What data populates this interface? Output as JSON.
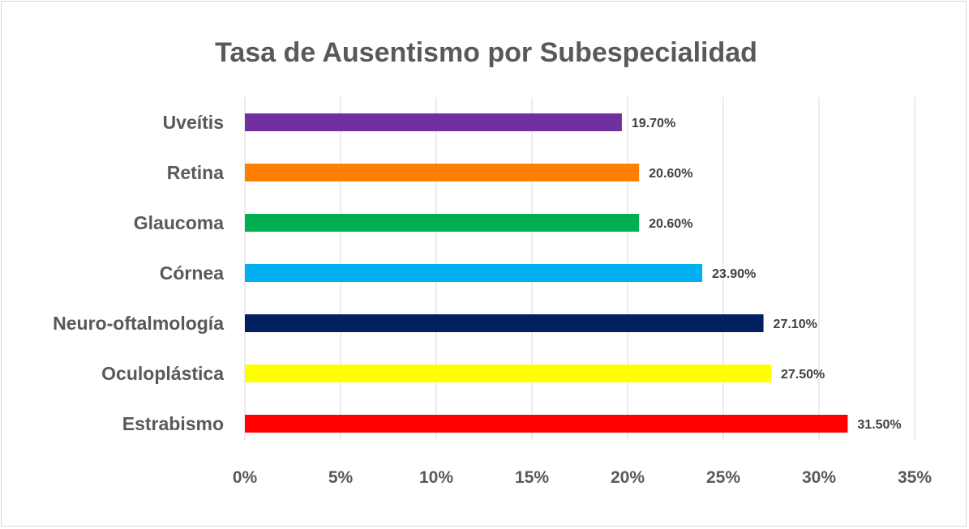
{
  "chart_data": {
    "type": "bar",
    "orientation": "horizontal",
    "title": "Tasa de Ausentismo por Subespecialidad",
    "xlabel": "",
    "ylabel": "",
    "xlim": [
      0,
      35
    ],
    "ticks": [
      {
        "value": 0,
        "label": "0%"
      },
      {
        "value": 5,
        "label": "5%"
      },
      {
        "value": 10,
        "label": "10%"
      },
      {
        "value": 15,
        "label": "15%"
      },
      {
        "value": 20,
        "label": "20%"
      },
      {
        "value": 25,
        "label": "25%"
      },
      {
        "value": 30,
        "label": "30%"
      },
      {
        "value": 35,
        "label": "35%"
      }
    ],
    "grid": true,
    "legend": "none",
    "categories": [
      "Uveítis",
      "Retina",
      "Glaucoma",
      "Córnea",
      "Neuro-oftalmología",
      "Oculoplástica",
      "Estrabismo"
    ],
    "values": [
      19.7,
      20.6,
      20.6,
      23.9,
      27.1,
      27.5,
      31.5
    ],
    "data_labels": [
      "19.70%",
      "20.60%",
      "20.60%",
      "23.90%",
      "27.10%",
      "27.50%",
      "31.50%"
    ],
    "colors": [
      "#7030a0",
      "#ff8000",
      "#00b050",
      "#00b0f0",
      "#002060",
      "#ffff00",
      "#ff0000"
    ]
  }
}
